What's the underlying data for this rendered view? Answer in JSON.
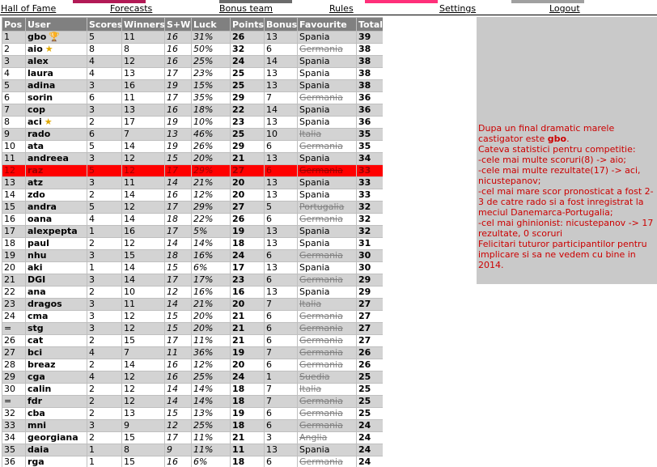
{
  "colors": {
    "header_bg": "#808080",
    "row_odd": "#d3d3d3",
    "row_even": "#ffffff",
    "highlight_row": "#ff0000",
    "side_panel_bg": "#c9c9c9",
    "side_text": "#cc0000",
    "top_strip": [
      "#ffffff",
      "#b21a56",
      "#ffffff",
      "#6b6b6b",
      "#ffffff",
      "#ff2f7a",
      "#ffffff",
      "#a0a0a0",
      "#ffffff"
    ]
  },
  "nav": {
    "items": [
      {
        "label": "Hall of Fame",
        "active": true
      },
      {
        "label": "Forecasts",
        "active": false
      },
      {
        "label": "Bonus team",
        "active": false
      },
      {
        "label": "Rules",
        "active": false
      },
      {
        "label": "Settings",
        "active": false
      },
      {
        "label": "Logout",
        "active": false
      }
    ]
  },
  "table": {
    "headers": [
      "Pos",
      "User",
      "Scores",
      "Winners",
      "S+W",
      "Luck",
      "Points",
      "Bonus",
      "Favourite",
      "Total"
    ],
    "highlight_row_index": 11,
    "rows": [
      {
        "pos": "1",
        "user": "gbo",
        "badge": "trophy-icon",
        "scores": "5",
        "winners": "11",
        "sw": "16",
        "luck": "31%",
        "points": "26",
        "bonus": "13",
        "fav": "Spania",
        "struck": false,
        "total": "39"
      },
      {
        "pos": "2",
        "user": "aio",
        "badge": "star-icon",
        "scores": "8",
        "winners": "8",
        "sw": "16",
        "luck": "50%",
        "points": "32",
        "bonus": "6",
        "fav": "Germania",
        "struck": true,
        "total": "38"
      },
      {
        "pos": "3",
        "user": "alex",
        "badge": "",
        "scores": "4",
        "winners": "12",
        "sw": "16",
        "luck": "25%",
        "points": "24",
        "bonus": "14",
        "fav": "Spania",
        "struck": false,
        "total": "38"
      },
      {
        "pos": "4",
        "user": "laura",
        "badge": "",
        "scores": "4",
        "winners": "13",
        "sw": "17",
        "luck": "23%",
        "points": "25",
        "bonus": "13",
        "fav": "Spania",
        "struck": false,
        "total": "38"
      },
      {
        "pos": "5",
        "user": "adina",
        "badge": "",
        "scores": "3",
        "winners": "16",
        "sw": "19",
        "luck": "15%",
        "points": "25",
        "bonus": "13",
        "fav": "Spania",
        "struck": false,
        "total": "38"
      },
      {
        "pos": "6",
        "user": "sorin",
        "badge": "",
        "scores": "6",
        "winners": "11",
        "sw": "17",
        "luck": "35%",
        "points": "29",
        "bonus": "7",
        "fav": "Germania",
        "struck": true,
        "total": "36"
      },
      {
        "pos": "7",
        "user": "cop",
        "badge": "",
        "scores": "3",
        "winners": "13",
        "sw": "16",
        "luck": "18%",
        "points": "22",
        "bonus": "14",
        "fav": "Spania",
        "struck": false,
        "total": "36"
      },
      {
        "pos": "8",
        "user": "aci",
        "badge": "star-icon",
        "scores": "2",
        "winners": "17",
        "sw": "19",
        "luck": "10%",
        "points": "23",
        "bonus": "13",
        "fav": "Spania",
        "struck": false,
        "total": "36"
      },
      {
        "pos": "9",
        "user": "rado",
        "badge": "",
        "scores": "6",
        "winners": "7",
        "sw": "13",
        "luck": "46%",
        "points": "25",
        "bonus": "10",
        "fav": "Italia",
        "struck": true,
        "total": "35"
      },
      {
        "pos": "10",
        "user": "ata",
        "badge": "",
        "scores": "5",
        "winners": "14",
        "sw": "19",
        "luck": "26%",
        "points": "29",
        "bonus": "6",
        "fav": "Germania",
        "struck": true,
        "total": "35"
      },
      {
        "pos": "11",
        "user": "andreea",
        "badge": "",
        "scores": "3",
        "winners": "12",
        "sw": "15",
        "luck": "20%",
        "points": "21",
        "bonus": "13",
        "fav": "Spania",
        "struck": false,
        "total": "34"
      },
      {
        "pos": "12",
        "user": "raz",
        "badge": "",
        "scores": "5",
        "winners": "12",
        "sw": "17",
        "luck": "29%",
        "points": "27",
        "bonus": "6",
        "fav": "Germania",
        "struck": true,
        "total": "33"
      },
      {
        "pos": "13",
        "user": "atz",
        "badge": "",
        "scores": "3",
        "winners": "11",
        "sw": "14",
        "luck": "21%",
        "points": "20",
        "bonus": "13",
        "fav": "Spania",
        "struck": false,
        "total": "33"
      },
      {
        "pos": "14",
        "user": "zdo",
        "badge": "",
        "scores": "2",
        "winners": "14",
        "sw": "16",
        "luck": "12%",
        "points": "20",
        "bonus": "13",
        "fav": "Spania",
        "struck": false,
        "total": "33"
      },
      {
        "pos": "15",
        "user": "andra",
        "badge": "",
        "scores": "5",
        "winners": "12",
        "sw": "17",
        "luck": "29%",
        "points": "27",
        "bonus": "5",
        "fav": "Portugalia",
        "struck": true,
        "total": "32"
      },
      {
        "pos": "16",
        "user": "oana",
        "badge": "",
        "scores": "4",
        "winners": "14",
        "sw": "18",
        "luck": "22%",
        "points": "26",
        "bonus": "6",
        "fav": "Germania",
        "struck": true,
        "total": "32"
      },
      {
        "pos": "17",
        "user": "alexpepta",
        "badge": "",
        "scores": "1",
        "winners": "16",
        "sw": "17",
        "luck": "5%",
        "points": "19",
        "bonus": "13",
        "fav": "Spania",
        "struck": false,
        "total": "32"
      },
      {
        "pos": "18",
        "user": "paul",
        "badge": "",
        "scores": "2",
        "winners": "12",
        "sw": "14",
        "luck": "14%",
        "points": "18",
        "bonus": "13",
        "fav": "Spania",
        "struck": false,
        "total": "31"
      },
      {
        "pos": "19",
        "user": "nhu",
        "badge": "",
        "scores": "3",
        "winners": "15",
        "sw": "18",
        "luck": "16%",
        "points": "24",
        "bonus": "6",
        "fav": "Germania",
        "struck": true,
        "total": "30"
      },
      {
        "pos": "20",
        "user": "aki",
        "badge": "",
        "scores": "1",
        "winners": "14",
        "sw": "15",
        "luck": "6%",
        "points": "17",
        "bonus": "13",
        "fav": "Spania",
        "struck": false,
        "total": "30"
      },
      {
        "pos": "21",
        "user": "DGI",
        "badge": "",
        "scores": "3",
        "winners": "14",
        "sw": "17",
        "luck": "17%",
        "points": "23",
        "bonus": "6",
        "fav": "Germania",
        "struck": true,
        "total": "29"
      },
      {
        "pos": "22",
        "user": "ana",
        "badge": "",
        "scores": "2",
        "winners": "10",
        "sw": "12",
        "luck": "16%",
        "points": "16",
        "bonus": "13",
        "fav": "Spania",
        "struck": false,
        "total": "29"
      },
      {
        "pos": "23",
        "user": "dragos",
        "badge": "",
        "scores": "3",
        "winners": "11",
        "sw": "14",
        "luck": "21%",
        "points": "20",
        "bonus": "7",
        "fav": "Italia",
        "struck": true,
        "total": "27"
      },
      {
        "pos": "24",
        "user": "cma",
        "badge": "",
        "scores": "3",
        "winners": "12",
        "sw": "15",
        "luck": "20%",
        "points": "21",
        "bonus": "6",
        "fav": "Germania",
        "struck": true,
        "total": "27"
      },
      {
        "pos": "=",
        "user": "stg",
        "badge": "",
        "scores": "3",
        "winners": "12",
        "sw": "15",
        "luck": "20%",
        "points": "21",
        "bonus": "6",
        "fav": "Germania",
        "struck": true,
        "total": "27"
      },
      {
        "pos": "26",
        "user": "cat",
        "badge": "",
        "scores": "2",
        "winners": "15",
        "sw": "17",
        "luck": "11%",
        "points": "21",
        "bonus": "6",
        "fav": "Germania",
        "struck": true,
        "total": "27"
      },
      {
        "pos": "27",
        "user": "bci",
        "badge": "",
        "scores": "4",
        "winners": "7",
        "sw": "11",
        "luck": "36%",
        "points": "19",
        "bonus": "7",
        "fav": "Germania",
        "struck": true,
        "total": "26"
      },
      {
        "pos": "28",
        "user": "breaz",
        "badge": "",
        "scores": "2",
        "winners": "14",
        "sw": "16",
        "luck": "12%",
        "points": "20",
        "bonus": "6",
        "fav": "Germania",
        "struck": true,
        "total": "26"
      },
      {
        "pos": "29",
        "user": "cga",
        "badge": "",
        "scores": "4",
        "winners": "12",
        "sw": "16",
        "luck": "25%",
        "points": "24",
        "bonus": "1",
        "fav": "Suedia",
        "struck": true,
        "total": "25"
      },
      {
        "pos": "30",
        "user": "calin",
        "badge": "",
        "scores": "2",
        "winners": "12",
        "sw": "14",
        "luck": "14%",
        "points": "18",
        "bonus": "7",
        "fav": "Italia",
        "struck": true,
        "total": "25"
      },
      {
        "pos": "=",
        "user": "fdr",
        "badge": "",
        "scores": "2",
        "winners": "12",
        "sw": "14",
        "luck": "14%",
        "points": "18",
        "bonus": "7",
        "fav": "Germania",
        "struck": true,
        "total": "25"
      },
      {
        "pos": "32",
        "user": "cba",
        "badge": "",
        "scores": "2",
        "winners": "13",
        "sw": "15",
        "luck": "13%",
        "points": "19",
        "bonus": "6",
        "fav": "Germania",
        "struck": true,
        "total": "25"
      },
      {
        "pos": "33",
        "user": "mni",
        "badge": "",
        "scores": "3",
        "winners": "9",
        "sw": "12",
        "luck": "25%",
        "points": "18",
        "bonus": "6",
        "fav": "Germania",
        "struck": true,
        "total": "24"
      },
      {
        "pos": "34",
        "user": "georgiana",
        "badge": "",
        "scores": "2",
        "winners": "15",
        "sw": "17",
        "luck": "11%",
        "points": "21",
        "bonus": "3",
        "fav": "Anglia",
        "struck": true,
        "total": "24"
      },
      {
        "pos": "35",
        "user": "daia",
        "badge": "",
        "scores": "1",
        "winners": "8",
        "sw": "9",
        "luck": "11%",
        "points": "11",
        "bonus": "13",
        "fav": "Spania",
        "struck": false,
        "total": "24"
      },
      {
        "pos": "36",
        "user": "rga",
        "badge": "",
        "scores": "1",
        "winners": "15",
        "sw": "16",
        "luck": "6%",
        "points": "18",
        "bonus": "6",
        "fav": "Germania",
        "struck": true,
        "total": "24"
      }
    ]
  },
  "side_panel": {
    "intro": "Dupa un final dramatic marele castigator este ",
    "winner": "gbo",
    "intro_end": ".",
    "lines": [
      "Cateva statistici pentru competitie:",
      "-cele mai multe scoruri(8) -> aio;",
      "-cele mai multe rezultate(17) -> aci, nicustepanov;",
      "-cel mai mare scor pronosticat a fost 2-3 de catre rado si a fost inregistrat la meciul Danemarca-Portugalia;",
      "-cel mai ghinionist: nicustepanov -> 17 rezultate, 0 scoruri",
      "Felicitari tuturor participantilor pentru implicare si sa ne vedem cu bine in 2014."
    ]
  }
}
